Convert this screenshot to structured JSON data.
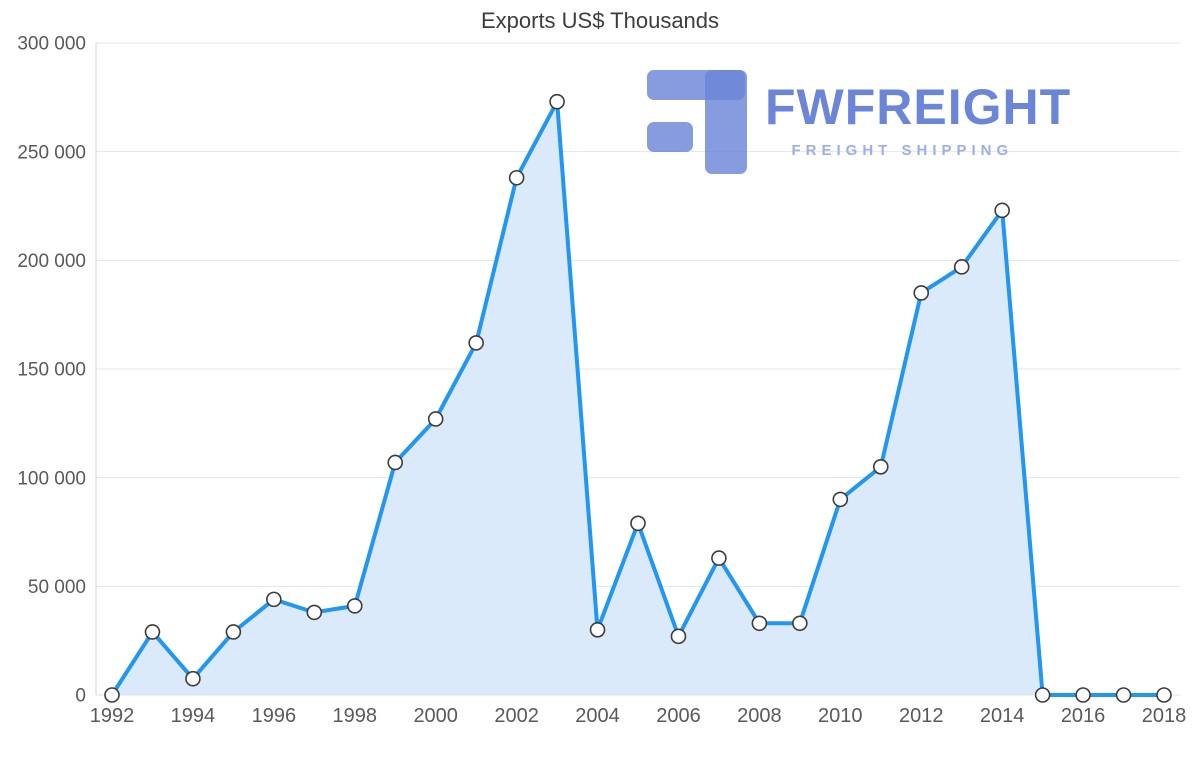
{
  "logo": {
    "name": "FWFREIGHT",
    "tagline": "FREIGHT SHIPPING",
    "color": "#6b86d8",
    "tagline_color": "#9db0e6"
  },
  "chart_data": {
    "type": "area",
    "title": "Exports US$ Thousands",
    "xlabel": "",
    "ylabel": "",
    "x": [
      1992,
      1993,
      1994,
      1995,
      1996,
      1997,
      1998,
      1999,
      2000,
      2001,
      2002,
      2003,
      2004,
      2005,
      2006,
      2007,
      2008,
      2009,
      2010,
      2011,
      2012,
      2013,
      2014,
      2015,
      2016,
      2017,
      2018
    ],
    "values": [
      0,
      29000,
      7500,
      29000,
      44000,
      38000,
      41000,
      107000,
      127000,
      162000,
      238000,
      273000,
      30000,
      79000,
      27000,
      63000,
      33000,
      33000,
      90000,
      105000,
      185000,
      197000,
      223000,
      0,
      0,
      0,
      0
    ],
    "xlim": [
      1992,
      2018
    ],
    "ylim": [
      0,
      300000
    ],
    "yticks": [
      0,
      50000,
      100000,
      150000,
      200000,
      250000,
      300000
    ],
    "xticks": [
      1992,
      1994,
      1996,
      1998,
      2000,
      2002,
      2004,
      2006,
      2008,
      2010,
      2012,
      2014,
      2016,
      2018
    ],
    "grid": "horizontal",
    "legend": "none",
    "line_color": "#2196f3",
    "fill_color": "#dbeafa",
    "marker_fill": "#ffffff",
    "marker_stroke": "#3c3c3c",
    "grid_color": "#e4e4e4",
    "axis_color": "#d6d6d6",
    "text_color": "#595959"
  }
}
